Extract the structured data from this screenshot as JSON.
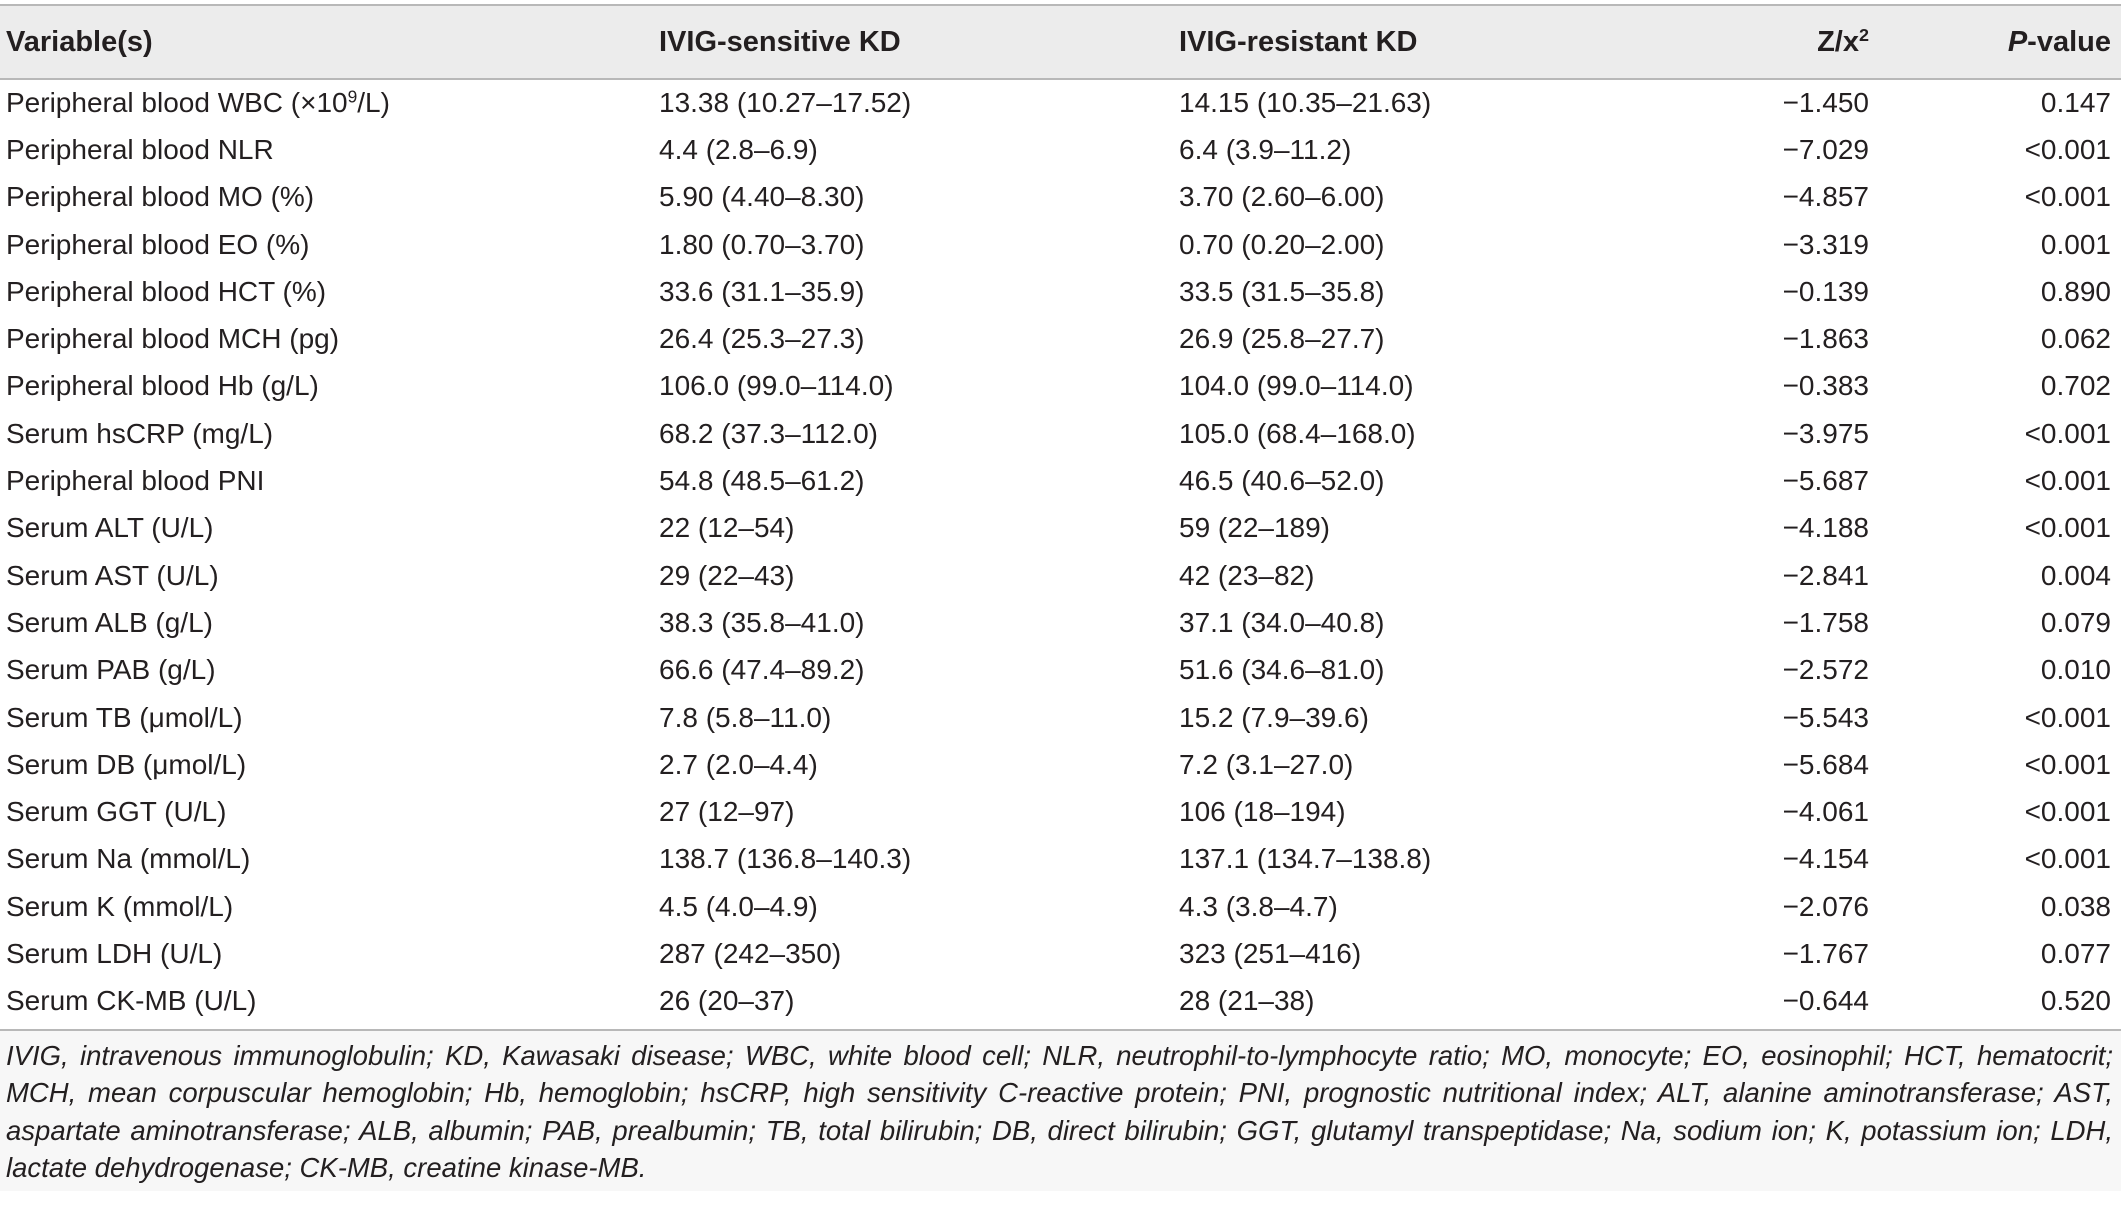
{
  "header": {
    "col1": "Variable(s)",
    "col2": "IVIG-sensitive KD",
    "col3": "IVIG-resistant KD",
    "col4_base": "Z/x",
    "col4_sup": "2",
    "col5_italic": "P",
    "col5_rest": "-value"
  },
  "rows": [
    {
      "variable": "Peripheral blood WBC (×10",
      "variable_sup": "9",
      "variable_tail": "/L)",
      "sensitive": "13.38 (10.27–17.52)",
      "resistant": "14.15 (10.35–21.63)",
      "z": "−1.450",
      "p": "0.147"
    },
    {
      "variable": "Peripheral blood NLR",
      "sensitive": "4.4 (2.8–6.9)",
      "resistant": "6.4 (3.9–11.2)",
      "z": "−7.029",
      "p": "<0.001"
    },
    {
      "variable": "Peripheral blood MO (%)",
      "sensitive": "5.90 (4.40–8.30)",
      "resistant": "3.70 (2.60–6.00)",
      "z": "−4.857",
      "p": "<0.001"
    },
    {
      "variable": "Peripheral blood EO (%)",
      "sensitive": "1.80 (0.70–3.70)",
      "resistant": "0.70 (0.20–2.00)",
      "z": "−3.319",
      "p": "0.001"
    },
    {
      "variable": "Peripheral blood HCT (%)",
      "sensitive": "33.6 (31.1–35.9)",
      "resistant": "33.5 (31.5–35.8)",
      "z": "−0.139",
      "p": "0.890"
    },
    {
      "variable": "Peripheral blood MCH (pg)",
      "sensitive": "26.4 (25.3–27.3)",
      "resistant": "26.9 (25.8–27.7)",
      "z": "−1.863",
      "p": "0.062"
    },
    {
      "variable": "Peripheral blood Hb (g/L)",
      "sensitive": "106.0 (99.0–114.0)",
      "resistant": "104.0 (99.0–114.0)",
      "z": "−0.383",
      "p": "0.702"
    },
    {
      "variable": "Serum hsCRP (mg/L)",
      "sensitive": "68.2 (37.3–112.0)",
      "resistant": "105.0 (68.4–168.0)",
      "z": "−3.975",
      "p": "<0.001"
    },
    {
      "variable": "Peripheral blood PNI",
      "sensitive": "54.8 (48.5–61.2)",
      "resistant": "46.5 (40.6–52.0)",
      "z": "−5.687",
      "p": "<0.001"
    },
    {
      "variable": "Serum ALT (U/L)",
      "sensitive": "22 (12–54)",
      "resistant": "59 (22–189)",
      "z": "−4.188",
      "p": "<0.001"
    },
    {
      "variable": "Serum AST (U/L)",
      "sensitive": "29 (22–43)",
      "resistant": "42 (23–82)",
      "z": "−2.841",
      "p": "0.004"
    },
    {
      "variable": "Serum ALB (g/L)",
      "sensitive": "38.3 (35.8–41.0)",
      "resistant": "37.1 (34.0–40.8)",
      "z": "−1.758",
      "p": "0.079"
    },
    {
      "variable": "Serum PAB (g/L)",
      "sensitive": "66.6 (47.4–89.2)",
      "resistant": "51.6 (34.6–81.0)",
      "z": "−2.572",
      "p": "0.010"
    },
    {
      "variable": "Serum TB (μmol/L)",
      "sensitive": "7.8 (5.8–11.0)",
      "resistant": "15.2 (7.9–39.6)",
      "z": "−5.543",
      "p": "<0.001"
    },
    {
      "variable": "Serum DB (μmol/L)",
      "sensitive": "2.7 (2.0–4.4)",
      "resistant": "7.2 (3.1–27.0)",
      "z": "−5.684",
      "p": "<0.001"
    },
    {
      "variable": "Serum GGT (U/L)",
      "sensitive": "27 (12–97)",
      "resistant": "106 (18–194)",
      "z": "−4.061",
      "p": "<0.001"
    },
    {
      "variable": "Serum Na (mmol/L)",
      "sensitive": "138.7 (136.8–140.3)",
      "resistant": "137.1 (134.7–138.8)",
      "z": "−4.154",
      "p": "<0.001"
    },
    {
      "variable": "Serum K (mmol/L)",
      "sensitive": "4.5 (4.0–4.9)",
      "resistant": "4.3 (3.8–4.7)",
      "z": "−2.076",
      "p": "0.038"
    },
    {
      "variable": "Serum LDH (U/L)",
      "sensitive": "287 (242–350)",
      "resistant": "323 (251–416)",
      "z": "−1.767",
      "p": "0.077"
    },
    {
      "variable": "Serum CK-MB (U/L)",
      "sensitive": "26 (20–37)",
      "resistant": "28 (21–38)",
      "z": "−0.644",
      "p": "0.520"
    }
  ],
  "footnote": "IVIG, intravenous immunoglobulin; KD, Kawasaki disease; WBC, white blood cell; NLR, neutrophil-to-lymphocyte ratio; MO, monocyte; EO, eosinophil; HCT, hematocrit; MCH, mean corpuscular hemoglobin; Hb, hemoglobin; hsCRP, high sensitivity C-reactive protein; PNI, prognostic nutritional index; ALT, alanine aminotransferase; AST, aspartate aminotransferase; ALB, albumin; PAB, prealbumin; TB, total bilirubin; DB, direct bilirubin; GGT, glutamyl transpeptidase; Na, sodium ion; K, potassium ion; LDH, lactate dehydrogenase; CK-MB, creatine kinase-MB."
}
